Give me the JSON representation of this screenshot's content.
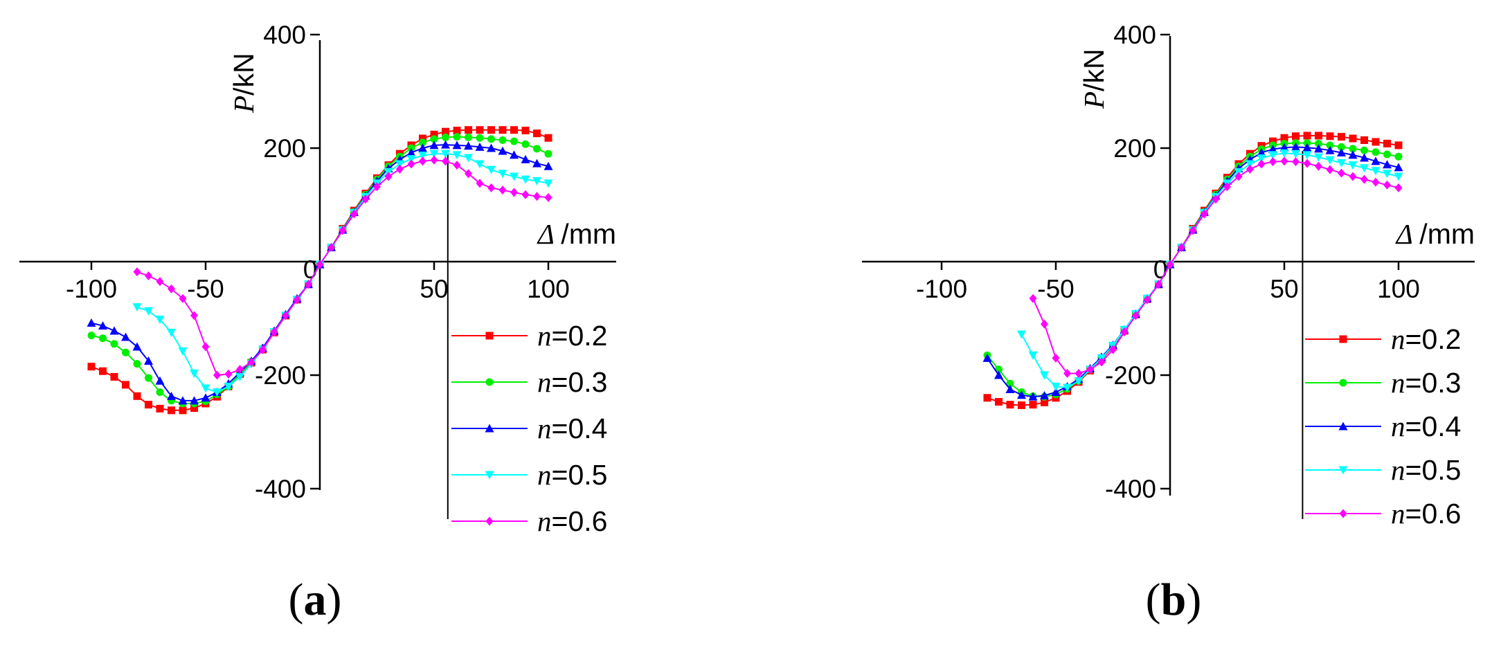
{
  "chart_data": [
    {
      "type": "line",
      "panel_label": "(a)",
      "xlabel": "Δ /mm",
      "ylabel": "P/kN",
      "xlim": [
        -130,
        130
      ],
      "ylim": [
        -400,
        400
      ],
      "xticks": [
        -100,
        -50,
        0,
        50,
        100
      ],
      "yticks": [
        -400,
        -200,
        0,
        200,
        400
      ],
      "marker_line_x": 56,
      "legend_position": "bottom-right",
      "series": [
        {
          "name": "n=0.2",
          "color": "#ff0000",
          "marker": "square",
          "x": [
            -100,
            -95,
            -90,
            -85,
            -80,
            -75,
            -70,
            -65,
            -60,
            -55,
            -50,
            -45,
            -40,
            -35,
            -30,
            -25,
            -20,
            -15,
            -10,
            -5,
            0,
            5,
            10,
            15,
            20,
            25,
            30,
            35,
            40,
            45,
            50,
            55,
            60,
            65,
            70,
            75,
            80,
            85,
            90,
            95,
            100
          ],
          "y": [
            -185,
            -193,
            -203,
            -217,
            -237,
            -252,
            -259,
            -262,
            -262,
            -258,
            -250,
            -238,
            -220,
            -198,
            -178,
            -155,
            -125,
            -95,
            -67,
            -40,
            -5,
            25,
            58,
            90,
            120,
            147,
            170,
            190,
            205,
            217,
            224,
            229,
            231,
            232,
            232,
            232,
            232,
            232,
            231,
            226,
            218
          ]
        },
        {
          "name": "n=0.3",
          "color": "#00ee00",
          "marker": "circle",
          "x": [
            -100,
            -95,
            -90,
            -85,
            -80,
            -75,
            -70,
            -65,
            -60,
            -55,
            -50,
            -45,
            -40,
            -35,
            -30,
            -25,
            -20,
            -15,
            -10,
            -5,
            0,
            5,
            10,
            15,
            20,
            25,
            30,
            35,
            40,
            45,
            50,
            55,
            60,
            65,
            70,
            75,
            80,
            85,
            90,
            95,
            100
          ],
          "y": [
            -130,
            -135,
            -145,
            -160,
            -180,
            -205,
            -230,
            -245,
            -250,
            -250,
            -246,
            -234,
            -220,
            -198,
            -176,
            -153,
            -123,
            -94,
            -66,
            -40,
            -5,
            25,
            57,
            88,
            118,
            145,
            168,
            185,
            200,
            210,
            216,
            219,
            220,
            219,
            218,
            216,
            214,
            212,
            207,
            199,
            190
          ]
        },
        {
          "name": "n=0.4",
          "color": "#0000ff",
          "marker": "triangle",
          "x": [
            -100,
            -95,
            -90,
            -85,
            -80,
            -75,
            -70,
            -65,
            -60,
            -55,
            -50,
            -45,
            -40,
            -35,
            -30,
            -25,
            -20,
            -15,
            -10,
            -5,
            0,
            5,
            10,
            15,
            20,
            25,
            30,
            35,
            40,
            45,
            50,
            55,
            60,
            65,
            70,
            75,
            80,
            85,
            90,
            95,
            100
          ],
          "y": [
            -108,
            -113,
            -122,
            -133,
            -150,
            -175,
            -210,
            -237,
            -245,
            -245,
            -240,
            -230,
            -215,
            -195,
            -175,
            -152,
            -122,
            -93,
            -65,
            -40,
            -5,
            25,
            56,
            87,
            116,
            142,
            164,
            180,
            192,
            200,
            205,
            206,
            205,
            204,
            202,
            200,
            195,
            188,
            180,
            173,
            168
          ]
        },
        {
          "name": "n=0.5",
          "color": "#00ffff",
          "marker": "triangle-down",
          "x": [
            -80,
            -75,
            -70,
            -65,
            -60,
            -55,
            -50,
            -45,
            -40,
            -35,
            -30,
            -25,
            -20,
            -15,
            -10,
            -5,
            0,
            5,
            10,
            15,
            20,
            25,
            30,
            35,
            40,
            45,
            50,
            55,
            60,
            65,
            70,
            75,
            80,
            85,
            90,
            95,
            100
          ],
          "y": [
            -80,
            -87,
            -102,
            -125,
            -158,
            -197,
            -223,
            -230,
            -220,
            -203,
            -180,
            -155,
            -124,
            -95,
            -67,
            -40,
            -5,
            25,
            55,
            86,
            114,
            138,
            158,
            172,
            181,
            187,
            190,
            190,
            188,
            183,
            172,
            162,
            155,
            150,
            145,
            142,
            138
          ]
        },
        {
          "name": "n=0.6",
          "color": "#ff00ff",
          "marker": "diamond",
          "x": [
            -80,
            -75,
            -70,
            -65,
            -60,
            -55,
            -50,
            -45,
            -40,
            -35,
            -30,
            -25,
            -20,
            -15,
            -10,
            -5,
            0,
            5,
            10,
            15,
            20,
            25,
            30,
            35,
            40,
            45,
            50,
            55,
            60,
            65,
            70,
            75,
            80,
            85,
            90,
            95,
            100
          ],
          "y": [
            -18,
            -25,
            -35,
            -48,
            -65,
            -95,
            -150,
            -200,
            -198,
            -190,
            -177,
            -155,
            -124,
            -95,
            -67,
            -40,
            -5,
            25,
            55,
            84,
            110,
            132,
            150,
            163,
            172,
            177,
            179,
            177,
            170,
            155,
            138,
            130,
            126,
            122,
            118,
            115,
            113
          ]
        }
      ]
    },
    {
      "type": "line",
      "panel_label": "(b)",
      "xlabel": "Δ /mm",
      "ylabel": "P/kN",
      "xlim": [
        -130,
        130
      ],
      "ylim": [
        -400,
        400
      ],
      "xticks": [
        -100,
        -50,
        0,
        50,
        100
      ],
      "yticks": [
        -400,
        -200,
        0,
        200,
        400
      ],
      "marker_line_x": 58,
      "legend_position": "bottom-right",
      "series": [
        {
          "name": "n=0.2",
          "color": "#ff0000",
          "marker": "square",
          "x": [
            -80,
            -75,
            -70,
            -65,
            -60,
            -55,
            -50,
            -45,
            -40,
            -35,
            -30,
            -25,
            -20,
            -15,
            -10,
            -5,
            0,
            5,
            10,
            15,
            20,
            25,
            30,
            35,
            40,
            45,
            50,
            55,
            60,
            65,
            70,
            75,
            80,
            85,
            90,
            95,
            100
          ],
          "y": [
            -240,
            -247,
            -252,
            -253,
            -252,
            -248,
            -240,
            -228,
            -212,
            -192,
            -172,
            -150,
            -122,
            -93,
            -66,
            -40,
            -5,
            25,
            58,
            90,
            120,
            148,
            172,
            190,
            204,
            212,
            218,
            221,
            222,
            222,
            221,
            220,
            217,
            214,
            211,
            208,
            205
          ]
        },
        {
          "name": "n=0.3",
          "color": "#00ee00",
          "marker": "circle",
          "x": [
            -80,
            -75,
            -70,
            -65,
            -60,
            -55,
            -50,
            -45,
            -40,
            -35,
            -30,
            -25,
            -20,
            -15,
            -10,
            -5,
            0,
            5,
            10,
            15,
            20,
            25,
            30,
            35,
            40,
            45,
            50,
            55,
            60,
            65,
            70,
            75,
            80,
            85,
            90,
            95,
            100
          ],
          "y": [
            -165,
            -190,
            -215,
            -230,
            -237,
            -238,
            -234,
            -224,
            -210,
            -190,
            -170,
            -148,
            -121,
            -92,
            -65,
            -40,
            -5,
            25,
            57,
            88,
            118,
            145,
            168,
            185,
            198,
            205,
            208,
            209,
            209,
            208,
            205,
            202,
            199,
            196,
            193,
            189,
            185
          ]
        },
        {
          "name": "n=0.4",
          "color": "#0000ff",
          "marker": "triangle",
          "x": [
            -80,
            -75,
            -70,
            -65,
            -60,
            -55,
            -50,
            -45,
            -40,
            -35,
            -30,
            -25,
            -20,
            -15,
            -10,
            -5,
            0,
            5,
            10,
            15,
            20,
            25,
            30,
            35,
            40,
            45,
            50,
            55,
            60,
            65,
            70,
            75,
            80,
            85,
            90,
            95,
            100
          ],
          "y": [
            -170,
            -200,
            -225,
            -235,
            -238,
            -236,
            -230,
            -220,
            -207,
            -188,
            -168,
            -147,
            -120,
            -92,
            -65,
            -40,
            -5,
            25,
            56,
            87,
            116,
            142,
            164,
            180,
            192,
            198,
            201,
            202,
            201,
            199,
            196,
            192,
            188,
            183,
            177,
            171,
            166
          ]
        },
        {
          "name": "n=0.5",
          "color": "#00ffff",
          "marker": "triangle-down",
          "x": [
            -65,
            -60,
            -55,
            -50,
            -45,
            -40,
            -35,
            -30,
            -25,
            -20,
            -15,
            -10,
            -5,
            0,
            5,
            10,
            15,
            20,
            25,
            30,
            35,
            40,
            45,
            50,
            55,
            60,
            65,
            70,
            75,
            80,
            85,
            90,
            95,
            100
          ],
          "y": [
            -128,
            -165,
            -200,
            -220,
            -222,
            -210,
            -190,
            -170,
            -148,
            -120,
            -92,
            -65,
            -40,
            -5,
            25,
            55,
            86,
            114,
            138,
            158,
            172,
            182,
            188,
            191,
            190,
            188,
            184,
            179,
            174,
            170,
            165,
            160,
            155,
            150
          ]
        },
        {
          "name": "n=0.6",
          "color": "#ff00ff",
          "marker": "diamond",
          "x": [
            -60,
            -55,
            -50,
            -45,
            -40,
            -35,
            -30,
            -25,
            -20,
            -15,
            -10,
            -5,
            0,
            5,
            10,
            15,
            20,
            25,
            30,
            35,
            40,
            45,
            50,
            55,
            60,
            65,
            70,
            75,
            80,
            85,
            90,
            95,
            100
          ],
          "y": [
            -65,
            -110,
            -170,
            -197,
            -197,
            -190,
            -177,
            -155,
            -124,
            -95,
            -67,
            -40,
            -5,
            25,
            55,
            84,
            110,
            132,
            150,
            163,
            172,
            176,
            177,
            176,
            173,
            168,
            162,
            156,
            150,
            145,
            140,
            135,
            130
          ]
        }
      ]
    }
  ]
}
